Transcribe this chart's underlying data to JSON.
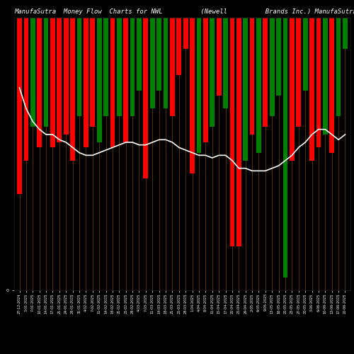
{
  "title": "ManufaSutra  Money Flow  Charts for NWL          (Newell          Brands Inc.) ManufaSutra",
  "bg_color": "#000000",
  "dates": [
    "27-12-2024",
    "3-01-2025",
    "7-01-2025",
    "10-01-2025",
    "14-01-2025",
    "17-01-2025",
    "21-01-2025",
    "24-01-2025",
    "28-01-2025",
    "31-01-2025",
    "4-02-2025",
    "7-02-2025",
    "11-02-2025",
    "14-02-2025",
    "18-02-2025",
    "21-02-2025",
    "25-02-2025",
    "28-02-2025",
    "4-03-2025",
    "7-03-2025",
    "11-03-2025",
    "14-03-2025",
    "18-03-2025",
    "21-03-2025",
    "25-03-2025",
    "28-03-2025",
    "1-04-2025",
    "4-04-2025",
    "8-04-2025",
    "11-04-2025",
    "15-04-2025",
    "17-04-2025",
    "22-04-2025",
    "25-04-2025",
    "29-04-2025",
    "2-05-2025",
    "6-05-2025",
    "9-05-2025",
    "13-05-2025",
    "16-05-2025",
    "20-05-2025",
    "23-05-2025",
    "27-05-2025",
    "30-05-2025",
    "3-06-2025",
    "6-06-2025",
    "10-06-2025",
    "13-06-2025",
    "17-06-2025",
    "20-06-2025"
  ],
  "bar_values": [
    0.68,
    0.55,
    0.42,
    0.5,
    0.42,
    0.5,
    0.48,
    0.45,
    0.55,
    0.38,
    0.5,
    0.42,
    0.48,
    0.38,
    0.5,
    0.38,
    0.48,
    0.38,
    0.28,
    0.62,
    0.35,
    0.28,
    0.35,
    0.38,
    0.22,
    0.12,
    0.6,
    0.52,
    0.48,
    0.42,
    0.3,
    0.35,
    0.88,
    0.88,
    0.55,
    0.45,
    0.52,
    0.42,
    0.38,
    0.3,
    1.0,
    0.55,
    0.42,
    0.28,
    0.55,
    0.5,
    0.45,
    0.52,
    0.38,
    0.12
  ],
  "bar_colors": [
    "red",
    "red",
    "green",
    "red",
    "green",
    "red",
    "red",
    "red",
    "red",
    "green",
    "red",
    "red",
    "green",
    "green",
    "red",
    "green",
    "red",
    "green",
    "green",
    "red",
    "green",
    "green",
    "green",
    "red",
    "red",
    "red",
    "red",
    "green",
    "red",
    "green",
    "red",
    "green",
    "red",
    "red",
    "green",
    "red",
    "green",
    "red",
    "green",
    "green",
    "green",
    "red",
    "red",
    "green",
    "red",
    "red",
    "green",
    "red",
    "green",
    "green"
  ],
  "line_values": [
    0.78,
    0.7,
    0.65,
    0.62,
    0.6,
    0.6,
    0.58,
    0.57,
    0.55,
    0.53,
    0.52,
    0.52,
    0.53,
    0.54,
    0.55,
    0.56,
    0.57,
    0.57,
    0.56,
    0.56,
    0.57,
    0.58,
    0.58,
    0.57,
    0.55,
    0.54,
    0.53,
    0.52,
    0.52,
    0.51,
    0.52,
    0.52,
    0.5,
    0.47,
    0.47,
    0.46,
    0.46,
    0.46,
    0.47,
    0.48,
    0.5,
    0.52,
    0.55,
    0.57,
    0.6,
    0.62,
    0.62,
    0.6,
    0.58,
    0.6
  ],
  "vline_color": "#8B4500",
  "line_color": "#ffffff",
  "title_color": "#ffffff",
  "title_fontsize": 6.5,
  "tick_fontsize": 3.5,
  "tick_color": "#ffffff",
  "ylim": [
    0.0,
    1.05
  ],
  "zero_label": "0"
}
